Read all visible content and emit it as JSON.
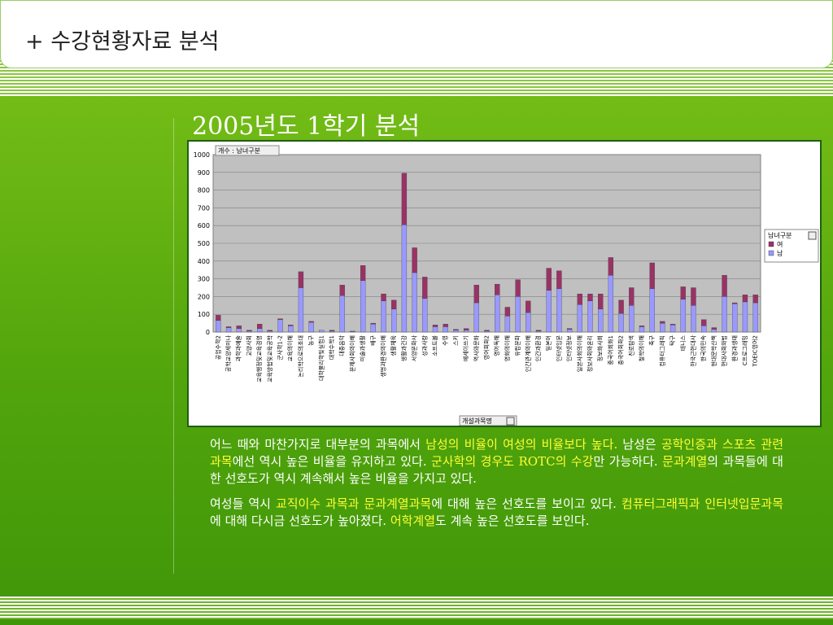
{
  "header": {
    "title": "+ 수강현황자료 분석"
  },
  "subtitle": "2005년도 1학기 분석",
  "chart_data": {
    "type": "bar",
    "stacked": true,
    "field_label": "개수 : 남녀구분",
    "x_axis_label": "개설과목명",
    "legend_title": "남녀구분",
    "categories": [
      "공업수학2",
      "공학교양세미나",
      "과학과예술",
      "교양사회",
      "교육행정및교육경영",
      "교육방법및교육공학",
      "군사학1-2",
      "교육의이해",
      "논리학으로의초대",
      "농구",
      "대학물리학및실험1",
      "대학수학1",
      "대중음악",
      "문제사회의이해",
      "미술과생활",
      "배구",
      "생명과환경의이해",
      "생활체육",
      "생활과건강",
      "서양문화사",
      "성과사랑",
      "소프트볼",
      "수영",
      "스키",
      "에세이쓰기",
      "역사와문화",
      "영어회화2",
      "영어독해",
      "영화의이해",
      "유럽문화",
      "인간관계의이해",
      "인간과환경",
      "일본어",
      "인터넷입문",
      "인터넷정보",
      "일본사회의이해",
      "정보사회와윤리",
      "정보화사회",
      "중국어회화1",
      "중국어회화2",
      "진로탐색",
      "철학의이해",
      "축구",
      "컴퓨터그래픽",
      "탁구",
      "테니스",
      "한국근현대사",
      "한국의민속",
      "현대문학산책",
      "현대사회와법",
      "환경과생태",
      "C프로그래밍",
      "TOEIC영어2"
    ],
    "series": [
      {
        "name": "남",
        "color": "#9999ff",
        "values": [
          65,
          25,
          20,
          5,
          20,
          5,
          70,
          35,
          250,
          55,
          10,
          5,
          205,
          3,
          290,
          45,
          175,
          130,
          605,
          335,
          190,
          30,
          30,
          10,
          10,
          165,
          5,
          210,
          90,
          200,
          110,
          5,
          235,
          245,
          15,
          155,
          175,
          130,
          320,
          105,
          150,
          30,
          245,
          50,
          40,
          185,
          150,
          35,
          15,
          200,
          160,
          170,
          165
        ]
      },
      {
        "name": "여",
        "color": "#993366",
        "values": [
          30,
          5,
          15,
          5,
          25,
          5,
          5,
          5,
          90,
          5,
          0,
          5,
          60,
          2,
          85,
          5,
          40,
          50,
          290,
          140,
          120,
          10,
          15,
          5,
          10,
          100,
          5,
          60,
          50,
          95,
          65,
          5,
          125,
          100,
          5,
          60,
          40,
          85,
          100,
          75,
          100,
          5,
          145,
          10,
          5,
          70,
          100,
          35,
          10,
          120,
          5,
          40,
          45
        ]
      }
    ],
    "ylim": [
      0,
      1000
    ],
    "yticks": [
      0,
      100,
      200,
      300,
      400,
      500,
      600,
      700,
      800,
      900,
      1000
    ],
    "grid": true
  },
  "paragraphs": [
    [
      {
        "text": "어느 때와 마찬가지로 대부분의 과목에서 ",
        "highlight": false
      },
      {
        "text": "남성의 비율이 여성의 비율보다 높다.",
        "highlight": true
      },
      {
        "text": " 남성은 ",
        "highlight": false
      },
      {
        "text": "공학인증과 스포츠 관련 과목",
        "highlight": true
      },
      {
        "text": "에선 역시 높은 비율을 유지하고 있다. ",
        "highlight": false
      },
      {
        "text": "군사학의 경우도 ROTC의 수강",
        "highlight": true
      },
      {
        "text": "만 가능하다. ",
        "highlight": false
      },
      {
        "text": "문과계열",
        "highlight": true
      },
      {
        "text": "의 과목들에 대한 선호도가 역시 계속해서 높은 비율을 가지고 있다.",
        "highlight": false
      }
    ],
    [
      {
        "text": "여성들 역시 ",
        "highlight": false
      },
      {
        "text": "교직이수 과목과 문과계열과목",
        "highlight": true
      },
      {
        "text": "에 대해 높은 선호도를 보이고 있다. ",
        "highlight": false
      },
      {
        "text": "컴퓨터그래픽과 인터넷입문과목",
        "highlight": true
      },
      {
        "text": "에 대해 다시금 선호도가 높아졌다. ",
        "highlight": false
      },
      {
        "text": "어학계열",
        "highlight": true
      },
      {
        "text": "도 계속 높은 선호도를 보인다.",
        "highlight": false
      }
    ]
  ]
}
